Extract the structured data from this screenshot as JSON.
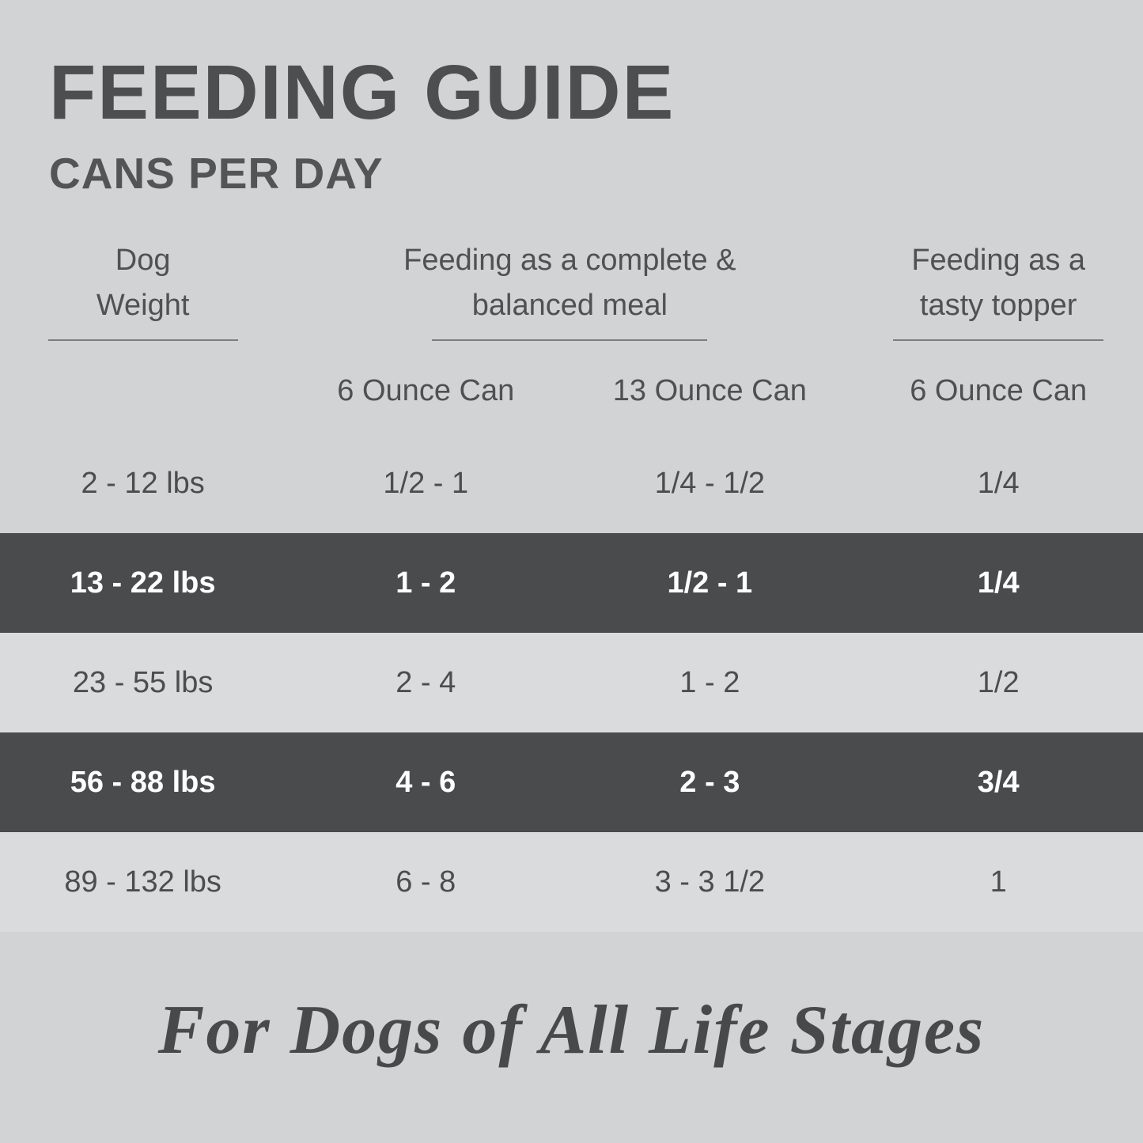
{
  "chart_data": {
    "type": "table",
    "title": "FEEDING GUIDE",
    "subtitle": "CANS PER DAY",
    "column_groups": [
      {
        "id": "dog-weight",
        "label_line1": "Dog",
        "label_line2": "Weight",
        "subcolumns": []
      },
      {
        "id": "complete-meal",
        "label_line1": "Feeding as a complete &",
        "label_line2": "balanced meal",
        "subcolumns": [
          "6 Ounce Can",
          "13 Ounce Can"
        ]
      },
      {
        "id": "tasty-topper",
        "label_line1": "Feeding as a",
        "label_line2": "tasty topper",
        "subcolumns": [
          "6 Ounce Can"
        ]
      }
    ],
    "rows": [
      {
        "weight": "2 - 12 lbs",
        "meal_6oz": "1/2 - 1",
        "meal_13oz": "1/4 - 1/2",
        "topper_6oz": "1/4",
        "highlighted": false
      },
      {
        "weight": "13 - 22 lbs",
        "meal_6oz": "1 - 2",
        "meal_13oz": "1/2 - 1",
        "topper_6oz": "1/4",
        "highlighted": true
      },
      {
        "weight": "23 - 55 lbs",
        "meal_6oz": "2 - 4",
        "meal_13oz": "1 - 2",
        "topper_6oz": "1/2",
        "highlighted": false
      },
      {
        "weight": "56 - 88 lbs",
        "meal_6oz": "4 - 6",
        "meal_13oz": "2 - 3",
        "topper_6oz": "3/4",
        "highlighted": true
      },
      {
        "weight": "89 - 132 lbs",
        "meal_6oz": "6 - 8",
        "meal_13oz": "3 - 3 1/2",
        "topper_6oz": "1",
        "highlighted": false
      }
    ],
    "footer_note": "For Dogs of All Life Stages",
    "colors": {
      "background": "#d2d3d5",
      "row_light": "#dadbdd",
      "row_dark": "#4a4b4d",
      "text_dark": "#4d4e50",
      "text_on_dark": "#ffffff"
    }
  }
}
